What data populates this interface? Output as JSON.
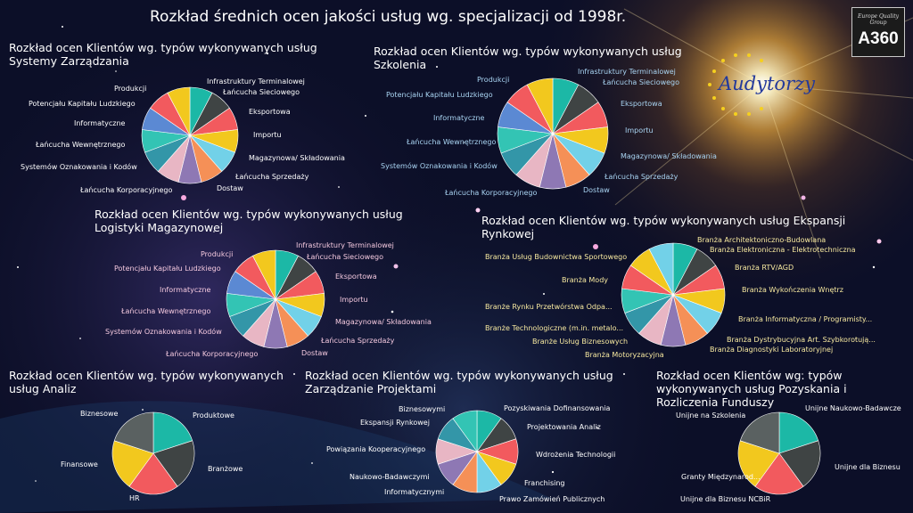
{
  "page": {
    "title": "Rozkład średnich ocen jakości usług wg. specjalizacji od 1998r.",
    "logo_small_text": "Europe Quality Group",
    "logo_text": "A360",
    "brand_text": "Audytorzy"
  },
  "colors": {
    "palette": [
      "#1cb8a6",
      "#3f4444",
      "#f25a5e",
      "#f2c81e",
      "#72d1e8",
      "#f59057",
      "#8e78b4",
      "#e8b6c4",
      "#3396a8",
      "#cbd06a",
      "#33c4b4",
      "#5b89d3"
    ],
    "label_white": "#ffffff",
    "label_yellow": "#f7e9a0",
    "label_blue": "#a9d4f2",
    "label_pink": "#f3c8de"
  },
  "chart_data": [
    {
      "type": "pie",
      "title": "Rozkład ocen Klientów wg. typów wykonywanych usług Systemy Zarządzania",
      "categories": [
        "Infrastruktury Terminalowej",
        "Łańcucha Sieciowego",
        "Eksportowa",
        "Importu",
        "Magazynowa/ Składowania",
        "Łańcucha Sprzedaży",
        "Dostaw",
        "Łańcucha Korporacyjnego",
        "Systemów Oznakowania i Kodów",
        "Łańcucha Wewnętrznego",
        "Informatyczne",
        "Potencjału Kapitału Ludzkiego",
        "Produkcji"
      ],
      "values": [
        1,
        1,
        1,
        1,
        1,
        1,
        1,
        1,
        1,
        1,
        1,
        1,
        1
      ],
      "colors": [
        "#1cb8a6",
        "#3f4444",
        "#f25a5e",
        "#f2c81e",
        "#72d1e8",
        "#f59057",
        "#8e78b4",
        "#e8b6c4",
        "#3396a8",
        "#33c4b4",
        "#5b89d3",
        "#f25a5e",
        "#f2c81e"
      ]
    },
    {
      "type": "pie",
      "title": "Rozkład ocen Klientów wg. typów wykonywanych usług Szkolenia",
      "categories": [
        "Infrastruktury Terminalowej",
        "Łańcucha Sieciowego",
        "Eksportowa",
        "Importu",
        "Magazynowa/ Składowania",
        "Łańcucha Sprzedaży",
        "Dostaw",
        "Łańcucha Korporacyjnego",
        "Systemów Oznakowania i Kodów",
        "Łańcucha Wewnętrznego",
        "Informatyczne",
        "Potencjału Kapitału Ludzkiego",
        "Produkcji"
      ],
      "values": [
        1,
        1,
        1,
        1,
        1,
        1,
        1,
        1,
        1,
        1,
        1,
        1,
        1
      ],
      "colors": [
        "#1cb8a6",
        "#3f4444",
        "#f25a5e",
        "#f2c81e",
        "#72d1e8",
        "#f59057",
        "#8e78b4",
        "#e8b6c4",
        "#3396a8",
        "#33c4b4",
        "#5b89d3",
        "#f25a5e",
        "#f2c81e"
      ]
    },
    {
      "type": "pie",
      "title": "Rozkład ocen Klientów wg. typów wykonywanych usług Logistyki Magazynowej",
      "categories": [
        "Infrastruktury Terminalowej",
        "Łańcucha Sieciowego",
        "Eksportowa",
        "Importu",
        "Magazynowa/ Składowania",
        "Łańcucha Sprzedaży",
        "Dostaw",
        "Łańcucha Korporacyjnego",
        "Systemów Oznakowania i Kodów",
        "Łańcucha Wewnętrznego",
        "Informatyczne",
        "Potencjału Kapitału Ludzkiego",
        "Produkcji"
      ],
      "values": [
        1,
        1,
        1,
        1,
        1,
        1,
        1,
        1,
        1,
        1,
        1,
        1,
        1
      ],
      "colors": [
        "#1cb8a6",
        "#3f4444",
        "#f25a5e",
        "#f2c81e",
        "#72d1e8",
        "#f59057",
        "#8e78b4",
        "#e8b6c4",
        "#3396a8",
        "#33c4b4",
        "#5b89d3",
        "#f25a5e",
        "#f2c81e"
      ]
    },
    {
      "type": "pie",
      "title": "Rozkład ocen Klientów wg. typów wykonywanych usług Ekspansji Rynkowej",
      "categories": [
        "Branża Architektoniczno-Budowlana",
        "Branża Elektroniczna - Elektrotechniczna",
        "Branża RTV/AGD",
        "Branża Wykończenia Wnętrz",
        "Branża Informatyczna / Programisty...",
        "Branża Dystrybucyjna Art. Szybkorotują...",
        "Branża Diagnostyki Laboratoryjnej",
        "Branża Motoryzacyjna",
        "Branże Usług Biznesowych",
        "Branże Technologiczne (m.in. metalo...",
        "Branże Rynku Przetwórstwa Odpa...",
        "Branża Mody",
        "Branża Usług Budownictwa Sportowego"
      ],
      "values": [
        1,
        1,
        1,
        1,
        1,
        1,
        1,
        1,
        1,
        1,
        1,
        1,
        1
      ],
      "colors": [
        "#1cb8a6",
        "#3f4444",
        "#f25a5e",
        "#f2c81e",
        "#72d1e8",
        "#f59057",
        "#8e78b4",
        "#e8b6c4",
        "#3396a8",
        "#33c4b4",
        "#f25a5e",
        "#f2c81e",
        "#72d1e8"
      ]
    },
    {
      "type": "pie",
      "title": "Rozkład ocen Klientów wg. typów wykonywanych usług Analiz",
      "categories": [
        "Produktowe",
        "Branżowe",
        "HR",
        "Finansowe",
        "Biznesowe"
      ],
      "values": [
        1,
        1,
        1,
        1,
        1
      ],
      "colors": [
        "#1cb8a6",
        "#3f4444",
        "#f25a5e",
        "#f2c81e",
        "#5a6161"
      ]
    },
    {
      "type": "pie",
      "title": "Rozkład ocen Klientów wg. typów wykonywanych usług Zarządzanie Projektami",
      "categories": [
        "Pozyskiwania Dofinansowania",
        "Projektowania Analiz",
        "Wdrożenia Technologii",
        "Franchising",
        "Prawo Zamówień Publicznych",
        "Informatycznymi",
        "Naukowo-Badawczymi",
        "Powiązania Kooperacyjnego",
        "Ekspansji Rynkowej",
        "Biznesowymi"
      ],
      "values": [
        1,
        1,
        1,
        1,
        1,
        1,
        1,
        1,
        1,
        1
      ],
      "colors": [
        "#1cb8a6",
        "#3f4444",
        "#f25a5e",
        "#f2c81e",
        "#72d1e8",
        "#f59057",
        "#8e78b4",
        "#e8b6c4",
        "#3396a8",
        "#33c4b4"
      ]
    },
    {
      "type": "pie",
      "title": "Rozkład ocen Klientów wg. typów wykonywanych usług Pozyskania i Rozliczenia Funduszy",
      "categories": [
        "Unijne Naukowo-Badawcze",
        "Unijne dla Biznesu",
        "Unijne dla Biznesu NCBiR",
        "Granty Międzynarod...",
        "Unijne na Szkolenia"
      ],
      "values": [
        1,
        1,
        1,
        1,
        1
      ],
      "colors": [
        "#1cb8a6",
        "#3f4444",
        "#f25a5e",
        "#f2c81e",
        "#5a6161"
      ]
    }
  ]
}
